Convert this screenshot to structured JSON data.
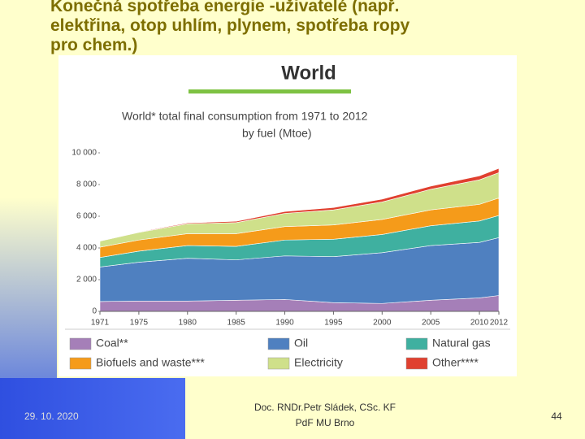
{
  "slide": {
    "title_lines": [
      "Konečná spotřeba energie -uživatelé (např.",
      "elektřina, otop uhlím, plynem, spotřeba ropy",
      "pro chem.)"
    ],
    "date": "29. 10. 2020",
    "author_lines": [
      "Doc. RNDr.Petr Sládek, CSc. KF",
      "PdF MU Brno"
    ],
    "page": "44"
  },
  "chart_data": {
    "type": "stacked-area",
    "title": "World",
    "subtitle_lines": [
      "World* total final consumption from 1971 to 2012",
      "by fuel (Mtoe)"
    ],
    "x": [
      1971,
      1975,
      1980,
      1985,
      1990,
      1995,
      2000,
      2005,
      2010,
      2012
    ],
    "xlim": [
      1971,
      2012
    ],
    "xticks": [
      1971,
      1975,
      1980,
      1985,
      1990,
      1995,
      2000,
      2005,
      2010,
      2012
    ],
    "ylim": [
      0,
      10000
    ],
    "yticks": [
      0,
      {
        "value": 2000,
        "label": "2 000"
      },
      {
        "value": 4000,
        "label": "4 000"
      },
      {
        "value": 6000,
        "label": "6 000"
      },
      {
        "value": 8000,
        "label": "8 000"
      },
      {
        "value": 10000,
        "label": "10 000"
      }
    ],
    "series": [
      {
        "name": "Coal**",
        "color": "#a57fb8",
        "values": [
          620,
          650,
          650,
          700,
          750,
          550,
          500,
          700,
          850,
          1000
        ]
      },
      {
        "name": "Oil",
        "color": "#4f80c0",
        "values": [
          2180,
          2450,
          2700,
          2550,
          2750,
          2900,
          3200,
          3450,
          3500,
          3650
        ]
      },
      {
        "name": "Natural gas",
        "color": "#3fb0a0",
        "values": [
          600,
          700,
          800,
          850,
          1000,
          1100,
          1150,
          1250,
          1350,
          1400
        ]
      },
      {
        "name": "Biofuels and waste***",
        "color": "#f59b1a",
        "values": [
          650,
          700,
          750,
          800,
          850,
          900,
          950,
          1000,
          1050,
          1100
        ]
      },
      {
        "name": "Electricity",
        "color": "#cfe08a",
        "values": [
          380,
          480,
          620,
          700,
          830,
          950,
          1100,
          1300,
          1550,
          1600
        ]
      },
      {
        "name": "Other****",
        "color": "#e0402f",
        "values": [
          20,
          30,
          60,
          80,
          120,
          150,
          180,
          200,
          250,
          270
        ]
      }
    ]
  }
}
